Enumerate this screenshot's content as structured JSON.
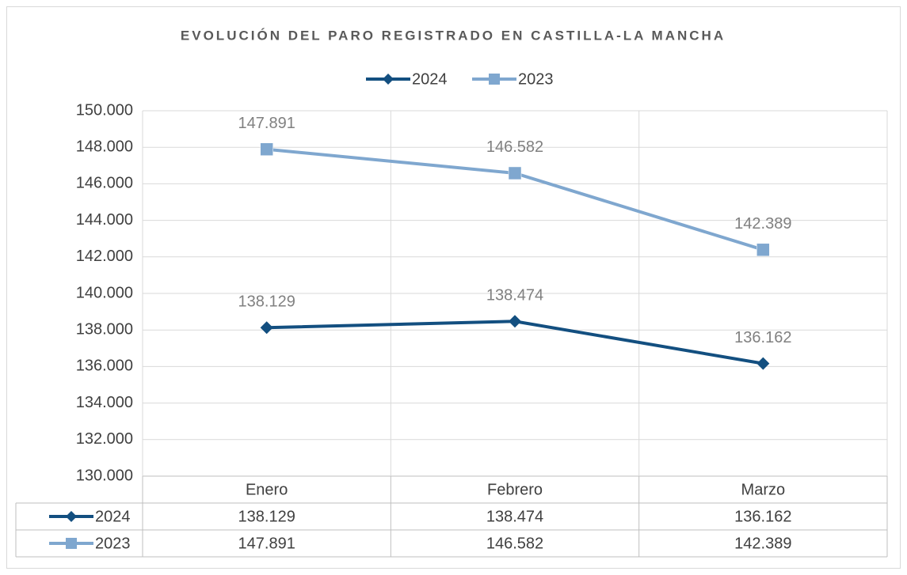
{
  "chart_data": {
    "type": "line",
    "title": "EVOLUCIÓN DEL PARO REGISTRADO EN CASTILLA-LA MANCHA",
    "categories": [
      "Enero",
      "Febrero",
      "Marzo"
    ],
    "series": [
      {
        "name": "2024",
        "color": "#134f80",
        "marker": "diamond",
        "values": [
          138129,
          138474,
          136162
        ],
        "value_labels": [
          "138.129",
          "138.474",
          "136.162"
        ]
      },
      {
        "name": "2023",
        "color": "#7fa7cf",
        "marker": "square",
        "values": [
          147891,
          146582,
          142389
        ],
        "value_labels": [
          "147.891",
          "146.582",
          "142.389"
        ]
      }
    ],
    "ylim": [
      130000,
      150000
    ],
    "yticks": [
      {
        "value": 130000,
        "label": "130.000"
      },
      {
        "value": 132000,
        "label": "132.000"
      },
      {
        "value": 134000,
        "label": "134.000"
      },
      {
        "value": 136000,
        "label": "136.000"
      },
      {
        "value": 138000,
        "label": "138.000"
      },
      {
        "value": 140000,
        "label": "140.000"
      },
      {
        "value": 142000,
        "label": "142.000"
      },
      {
        "value": 144000,
        "label": "144.000"
      },
      {
        "value": 146000,
        "label": "146.000"
      },
      {
        "value": 148000,
        "label": "148.000"
      },
      {
        "value": 150000,
        "label": "150.000"
      }
    ],
    "grid": true,
    "legend": "top",
    "data_table": true
  }
}
